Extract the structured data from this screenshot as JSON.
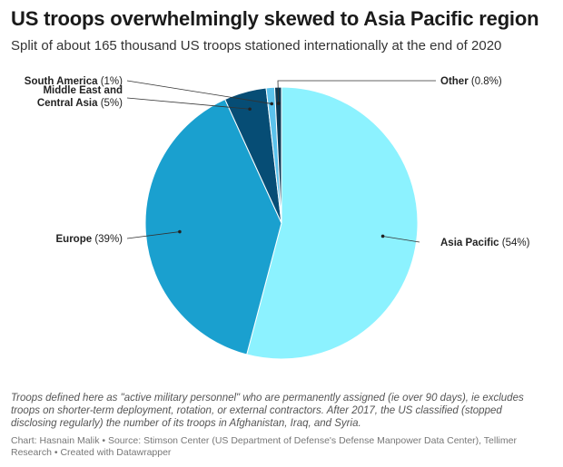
{
  "header": {
    "title": "US troops overwhelmingly skewed to Asia Pacific region",
    "subtitle": "Split of about 165 thousand US troops stationed internationally at the end of 2020"
  },
  "chart_data": {
    "type": "pie",
    "slices": [
      {
        "name": "Asia Pacific",
        "value_label": "(54%)",
        "value": 54,
        "color": "#8CF2FF"
      },
      {
        "name": "Europe",
        "value_label": "(39%)",
        "value": 39,
        "color": "#1AA0CF"
      },
      {
        "name": "Middle East and Central Asia",
        "label_lines": [
          "Middle East and",
          "Central Asia"
        ],
        "value_label": "(5%)",
        "value": 5,
        "color": "#064D75"
      },
      {
        "name": "South America",
        "value_label": "(1%)",
        "value": 1,
        "color": "#5BC2EC"
      },
      {
        "name": "Other",
        "value_label": "(0.8%)",
        "value": 0.8,
        "color": "#0A3A57"
      }
    ],
    "legend": "none (direct labels with leader lines)"
  },
  "footer": {
    "notes": "Troops defined here as \"active military personnel\" who are permanently assigned (ie over 90 days), ie excludes troops on shorter-term deployment, rotation, or external contractors. After 2017, the US classified (stopped disclosing regularly) the number of its troops in Afghanistan, Iraq, and Syria.",
    "credits": "Chart: Hasnain Malik • Source: Stimson Center (US Department of Defense's Defense Manpower Data Center), Tellimer Research • Created with Datawrapper"
  }
}
